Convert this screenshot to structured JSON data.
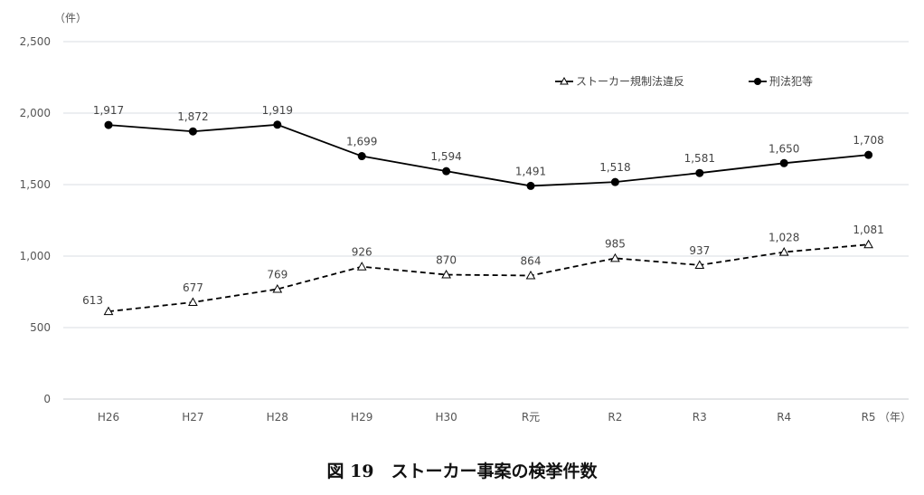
{
  "chart_data": {
    "type": "line",
    "title": "図 19　ストーカー事案の検挙件数",
    "ylabel": "（件）",
    "xlabel": "（年）",
    "ylim": [
      0,
      2500
    ],
    "yticks": [
      0,
      500,
      1000,
      1500,
      2000,
      2500
    ],
    "ytick_labels": [
      "0",
      "500",
      "1,000",
      "1,500",
      "2,000",
      "2,500"
    ],
    "categories": [
      "H26",
      "H27",
      "H28",
      "H29",
      "H30",
      "R元",
      "R2",
      "R3",
      "R4",
      "R5"
    ],
    "grid": true,
    "legend_position": "top-right",
    "series": [
      {
        "name": "ストーカー規制法違反",
        "style": "dashed",
        "marker": "triangle-open",
        "values": [
          613,
          677,
          769,
          926,
          870,
          864,
          985,
          937,
          1028,
          1081
        ],
        "labels": [
          "613",
          "677",
          "769",
          "926",
          "870",
          "864",
          "985",
          "937",
          "1,028",
          "1,081"
        ]
      },
      {
        "name": "刑法犯等",
        "style": "solid",
        "marker": "circle-filled",
        "values": [
          1917,
          1872,
          1919,
          1699,
          1594,
          1491,
          1518,
          1581,
          1650,
          1708
        ],
        "labels": [
          "1,917",
          "1,872",
          "1,919",
          "1,699",
          "1,594",
          "1,491",
          "1,518",
          "1,581",
          "1,650",
          "1,708"
        ]
      }
    ],
    "colors": {
      "line": "#000000",
      "grid": "#d9dde3",
      "highlight": "#e00000"
    }
  }
}
